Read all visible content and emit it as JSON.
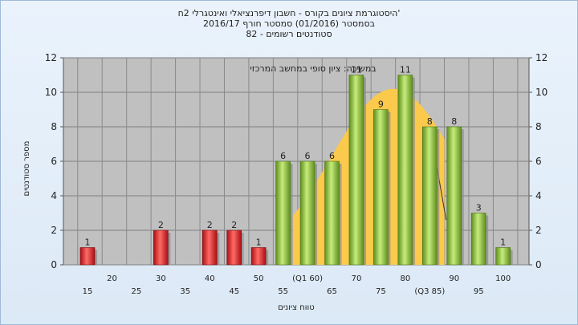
{
  "chart_data": {
    "type": "bar",
    "title_lines": [
      "'היסטוגרמת ציונים בקורס - חשבון דיפרנציאלי ואינטגרלי 2ח",
      "בסמסטר  (01/2016)  סמסטר חורף 2016/17",
      "סטודנטים רשומים - 82"
    ],
    "annotation": "במשיכה: ציון סופי במחשב המרכזי",
    "ylabel": "מספר סטודנטים",
    "xlabel": "טווח ציונים",
    "ylim": [
      0,
      12
    ],
    "yticks": [
      0,
      2,
      4,
      6,
      8,
      10,
      12
    ],
    "grid": true,
    "x_low": [
      "15",
      "25",
      "35",
      "45",
      "55",
      "65",
      "75",
      "(Q3 85)",
      "95"
    ],
    "x_high": [
      "20",
      "30",
      "40",
      "50",
      "(Q1 60)",
      "70",
      "80",
      "90",
      "100"
    ],
    "categories": [
      15,
      20,
      25,
      30,
      35,
      40,
      45,
      50,
      55,
      60,
      65,
      70,
      75,
      80,
      85,
      90,
      95,
      100
    ],
    "values": [
      1,
      0,
      0,
      2,
      0,
      2,
      2,
      1,
      6,
      6,
      6,
      11,
      9,
      11,
      8,
      8,
      3,
      1
    ],
    "fail_threshold": 55,
    "colors": {
      "fail": "#e0262b",
      "pass": "#8cc43c",
      "curve": "#fbc94b",
      "plot_bg": "#c0c0c0"
    }
  }
}
